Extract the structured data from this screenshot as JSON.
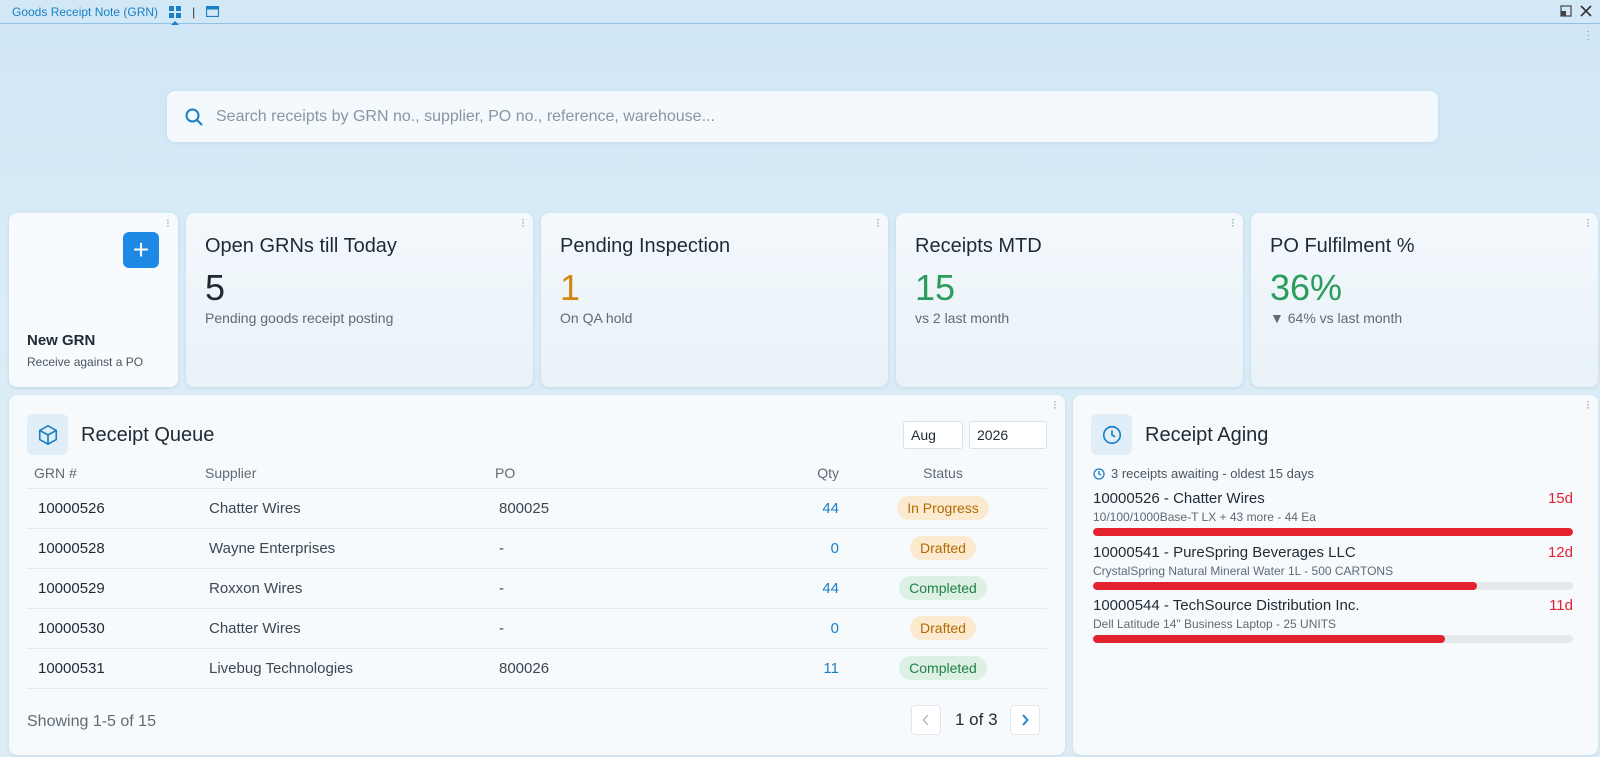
{
  "window": {
    "title": "Goods Receipt Note (GRN)",
    "separator": "|"
  },
  "search": {
    "placeholder": "Search receipts by GRN no., supplier, PO no., reference, warehouse..."
  },
  "new_grn": {
    "plus": "+",
    "title": "New GRN",
    "subtitle": "Receive against a PO"
  },
  "kpis": [
    {
      "label": "Open GRNs till Today",
      "value": "5",
      "sub": "Pending goods receipt posting",
      "color": "#1f2a33"
    },
    {
      "label": "Pending Inspection",
      "value": "1",
      "sub": "On QA hold",
      "color": "#d4860f"
    },
    {
      "label": "Receipts MTD",
      "value": "15",
      "sub": "vs 2 last month",
      "color": "#2a9d5c"
    },
    {
      "label": "PO Fulfilment %",
      "value": "36%",
      "sub": "▼ 64% vs last month",
      "color": "#2a9d5c"
    }
  ],
  "queue": {
    "title": "Receipt Queue",
    "month": "Aug",
    "year": "2026",
    "headers": {
      "grn": "GRN #",
      "supplier": "Supplier",
      "po": "PO",
      "qty": "Qty",
      "status": "Status"
    },
    "rows": [
      {
        "grn": "10000526",
        "supplier": "Chatter Wires",
        "po": "800025",
        "qty": "44",
        "status": "In Progress"
      },
      {
        "grn": "10000528",
        "supplier": "Wayne Enterprises",
        "po": "-",
        "qty": "0",
        "status": "Drafted"
      },
      {
        "grn": "10000529",
        "supplier": "Roxxon Wires",
        "po": "-",
        "qty": "44",
        "status": "Completed"
      },
      {
        "grn": "10000530",
        "supplier": "Chatter Wires",
        "po": "-",
        "qty": "0",
        "status": "Drafted"
      },
      {
        "grn": "10000531",
        "supplier": "Livebug Technologies",
        "po": "800026",
        "qty": "11",
        "status": "Completed"
      }
    ],
    "showing": "Showing 1-5 of 15",
    "page_info": "1 of 3"
  },
  "aging": {
    "title": "Receipt Aging",
    "summary": "3 receipts awaiting - oldest 15 days",
    "items": [
      {
        "title": "10000526 - Chatter Wires",
        "desc": "10/100/1000Base-T LX + 43 more - 44 Ea",
        "days": "15d",
        "fraction": 1.0
      },
      {
        "title": "10000541 - PureSpring Beverages LLC",
        "desc": "CrystalSpring Natural Mineral Water 1L - 500 CARTONS",
        "days": "12d",
        "fraction": 0.8
      },
      {
        "title": "10000544 - TechSource Distribution Inc.",
        "desc": "Dell Latitude 14\" Business Laptop - 25 UNITS",
        "days": "11d",
        "fraction": 0.733
      }
    ]
  }
}
